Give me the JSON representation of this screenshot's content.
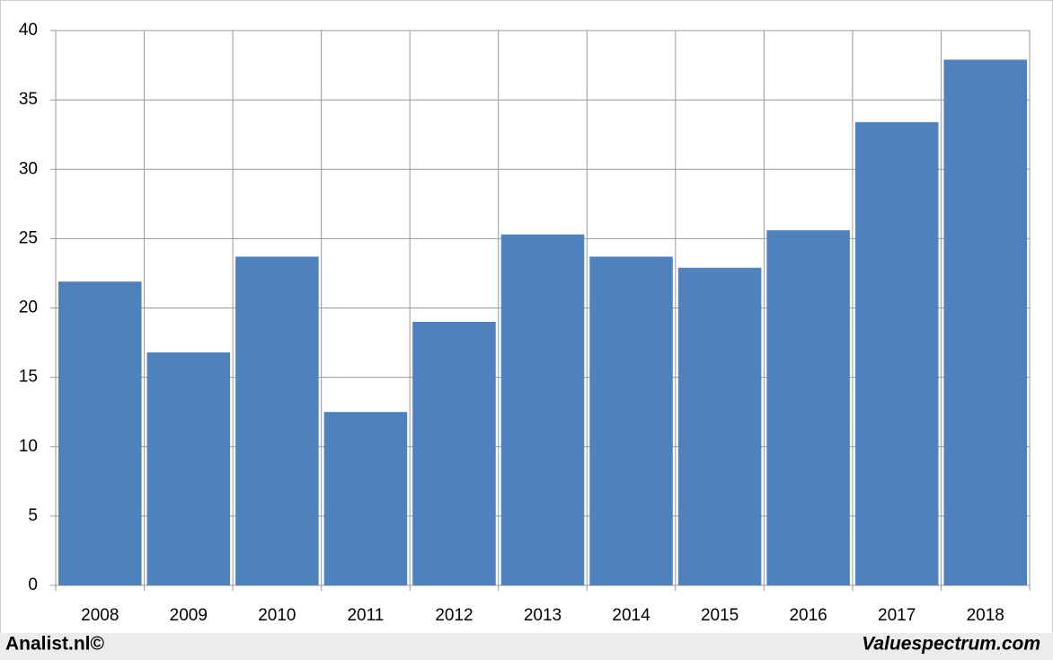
{
  "chart_data": {
    "type": "bar",
    "categories": [
      "2008",
      "2009",
      "2010",
      "2011",
      "2012",
      "2013",
      "2014",
      "2015",
      "2016",
      "2017",
      "2018"
    ],
    "values": [
      21.9,
      16.8,
      23.7,
      12.5,
      19.0,
      25.3,
      23.7,
      22.9,
      25.6,
      33.4,
      37.9
    ],
    "color": "#4f81bd",
    "ylim": [
      0,
      40
    ],
    "yticks": [
      0,
      5,
      10,
      15,
      20,
      25,
      30,
      35,
      40
    ],
    "grid": true
  },
  "credits": {
    "left": "Analist.nl©",
    "right": "Valuespectrum.com"
  }
}
